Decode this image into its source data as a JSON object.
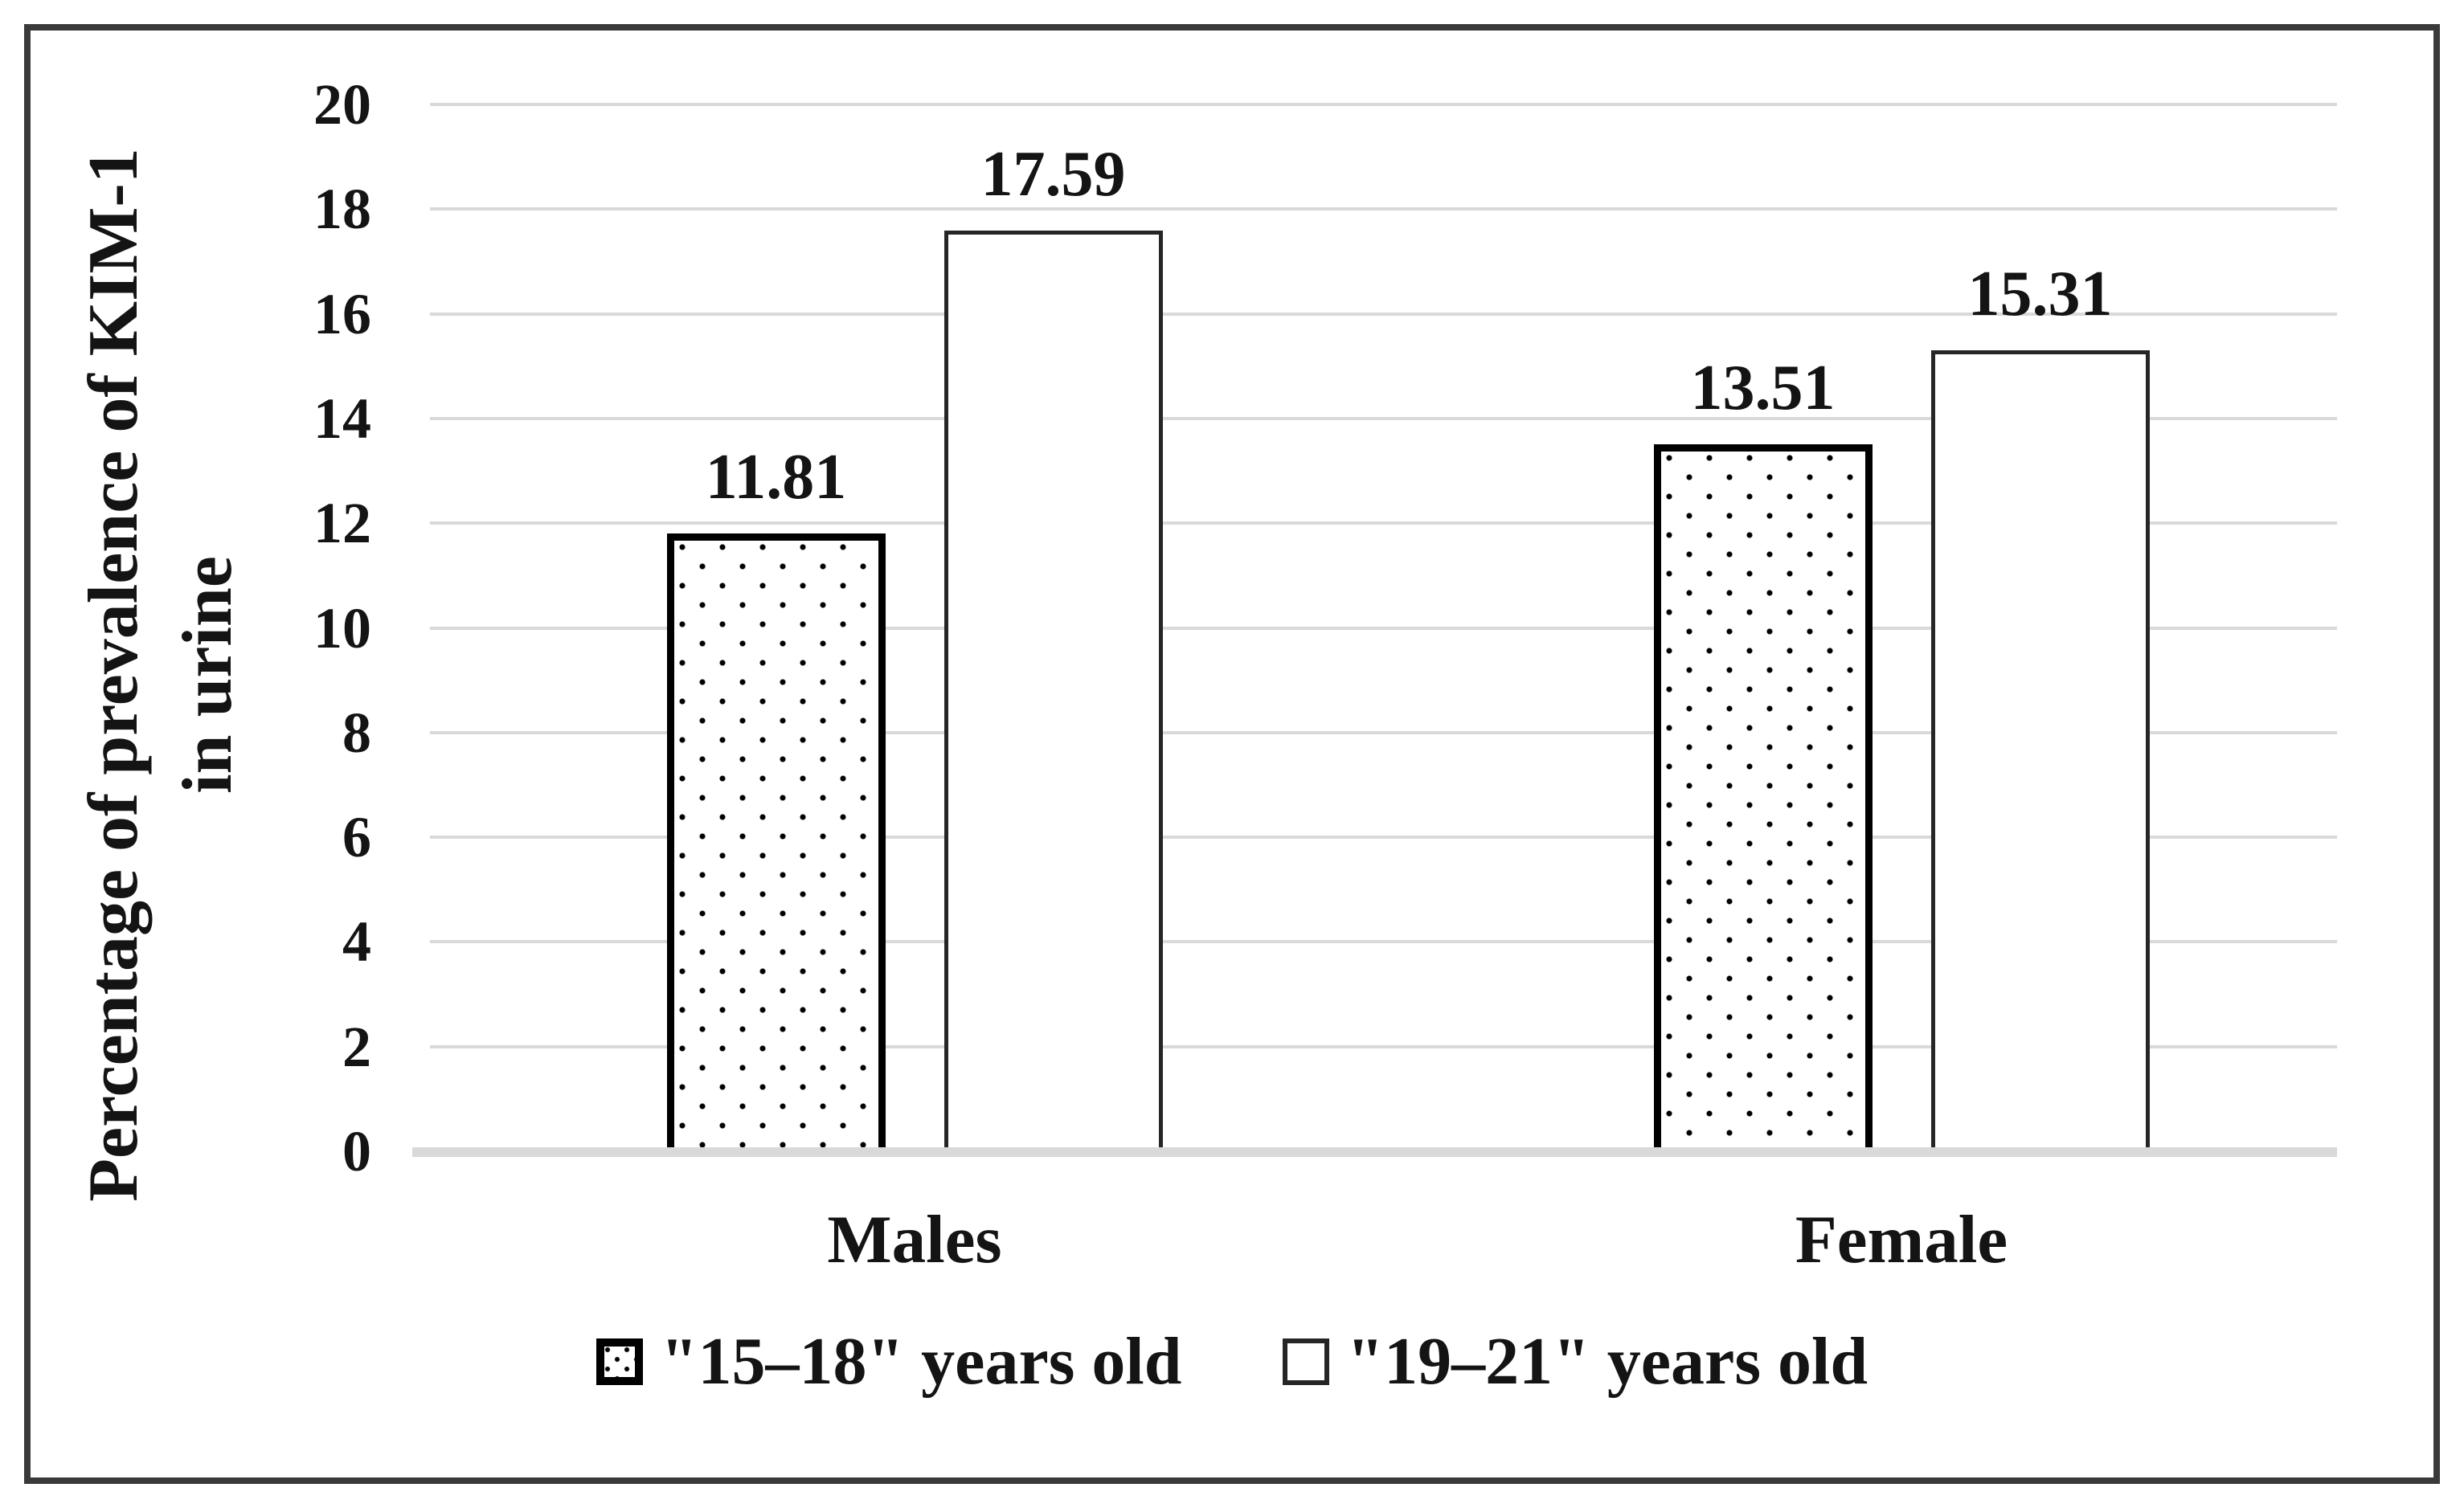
{
  "chart_data": {
    "type": "bar",
    "title": "",
    "categories": [
      "Males",
      "Female"
    ],
    "series": [
      {
        "name": "\"15–18\" years old",
        "fill_pattern": "dotted",
        "values": [
          11.81,
          13.51
        ]
      },
      {
        "name": "\"19–21\" years old",
        "fill_pattern": "plain",
        "values": [
          17.59,
          15.31
        ]
      }
    ],
    "data_labels": [
      "11.81",
      "17.59",
      "13.51",
      "15.31"
    ],
    "ylabel_lines": [
      "Percentage of prevalence of KIM-1",
      "in urine"
    ],
    "ylim": [
      0,
      20
    ],
    "ytick_step": 2,
    "ytick_labels": [
      "0",
      "2",
      "4",
      "6",
      "8",
      "10",
      "12",
      "14",
      "16",
      "18",
      "20"
    ],
    "grid": true,
    "legend_position": "bottom"
  },
  "colors": {
    "gridline": "#d9d9d9",
    "axis_line": "#d9d9d9",
    "frame_border": "#3a3a3a",
    "text": "#141414",
    "bar_fill": "#ffffff",
    "bar_outline": "#000000"
  }
}
